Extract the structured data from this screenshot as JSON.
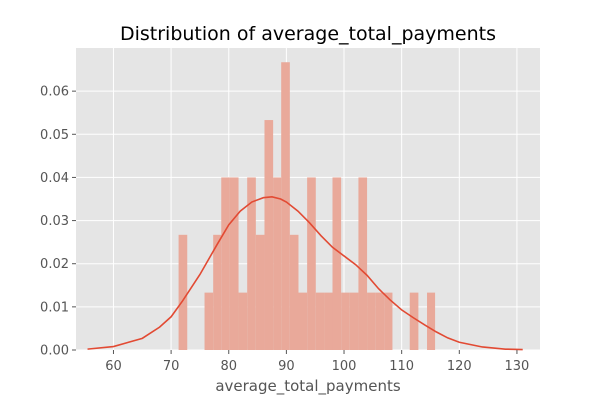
{
  "chart_data": {
    "type": "histogram",
    "title": "Distribution of average_total_payments",
    "xlabel": "average_total_payments",
    "ylabel": "",
    "xlim": [
      53.5,
      134.0
    ],
    "ylim": [
      0,
      0.07
    ],
    "xticks": [
      60,
      70,
      80,
      90,
      100,
      110,
      120,
      130
    ],
    "yticks": [
      0.0,
      0.01,
      0.02,
      0.03,
      0.04,
      0.05,
      0.06
    ],
    "ytick_labels": [
      "0.00",
      "0.01",
      "0.02",
      "0.03",
      "0.04",
      "0.05",
      "0.06"
    ],
    "grid": true,
    "legend": "none",
    "bins": [
      {
        "x0": 71.3,
        "x1": 72.8,
        "density": 0.0267
      },
      {
        "x0": 75.8,
        "x1": 77.3,
        "density": 0.0133
      },
      {
        "x0": 77.3,
        "x1": 78.7,
        "density": 0.0267
      },
      {
        "x0": 78.7,
        "x1": 80.2,
        "density": 0.04
      },
      {
        "x0": 80.2,
        "x1": 81.7,
        "density": 0.04
      },
      {
        "x0": 81.7,
        "x1": 83.2,
        "density": 0.0133
      },
      {
        "x0": 83.2,
        "x1": 84.7,
        "density": 0.04
      },
      {
        "x0": 84.7,
        "x1": 86.2,
        "density": 0.0267
      },
      {
        "x0": 86.2,
        "x1": 87.7,
        "density": 0.0533
      },
      {
        "x0": 87.7,
        "x1": 89.1,
        "density": 0.04
      },
      {
        "x0": 89.1,
        "x1": 90.6,
        "density": 0.0667
      },
      {
        "x0": 90.6,
        "x1": 92.1,
        "density": 0.0267
      },
      {
        "x0": 92.1,
        "x1": 93.6,
        "density": 0.0133
      },
      {
        "x0": 93.6,
        "x1": 95.1,
        "density": 0.04
      },
      {
        "x0": 95.1,
        "x1": 96.6,
        "density": 0.0133
      },
      {
        "x0": 96.6,
        "x1": 98.0,
        "density": 0.0133
      },
      {
        "x0": 98.0,
        "x1": 99.5,
        "density": 0.04
      },
      {
        "x0": 99.5,
        "x1": 101.0,
        "density": 0.0133
      },
      {
        "x0": 101.0,
        "x1": 102.5,
        "density": 0.0133
      },
      {
        "x0": 102.5,
        "x1": 104.0,
        "density": 0.04
      },
      {
        "x0": 104.0,
        "x1": 105.5,
        "density": 0.0133
      },
      {
        "x0": 105.5,
        "x1": 107.0,
        "density": 0.0133
      },
      {
        "x0": 107.0,
        "x1": 108.4,
        "density": 0.0133
      },
      {
        "x0": 111.4,
        "x1": 112.9,
        "density": 0.0133
      },
      {
        "x0": 114.4,
        "x1": 115.8,
        "density": 0.0133
      }
    ],
    "kde": {
      "x": [
        55.5,
        60,
        65,
        68,
        70,
        72,
        75,
        78,
        80,
        82,
        84,
        86,
        87.5,
        89,
        90,
        92,
        94,
        96,
        98,
        100,
        102,
        104,
        106,
        108,
        110,
        112,
        114,
        116,
        118,
        120,
        124,
        128,
        131
      ],
      "y": [
        0.0002,
        0.0008,
        0.0027,
        0.0053,
        0.0077,
        0.0114,
        0.0175,
        0.0245,
        0.029,
        0.0322,
        0.0343,
        0.0353,
        0.0355,
        0.035,
        0.0343,
        0.0322,
        0.0295,
        0.0265,
        0.0238,
        0.0218,
        0.0198,
        0.0173,
        0.0142,
        0.0116,
        0.0093,
        0.0075,
        0.0058,
        0.0042,
        0.0028,
        0.0018,
        0.0007,
        0.0002,
        0.0001
      ]
    },
    "colors": {
      "bar_fill": "#e9a99a",
      "line": "#e24a33",
      "plot_bg": "#e5e5e5",
      "grid": "#ffffff"
    }
  }
}
